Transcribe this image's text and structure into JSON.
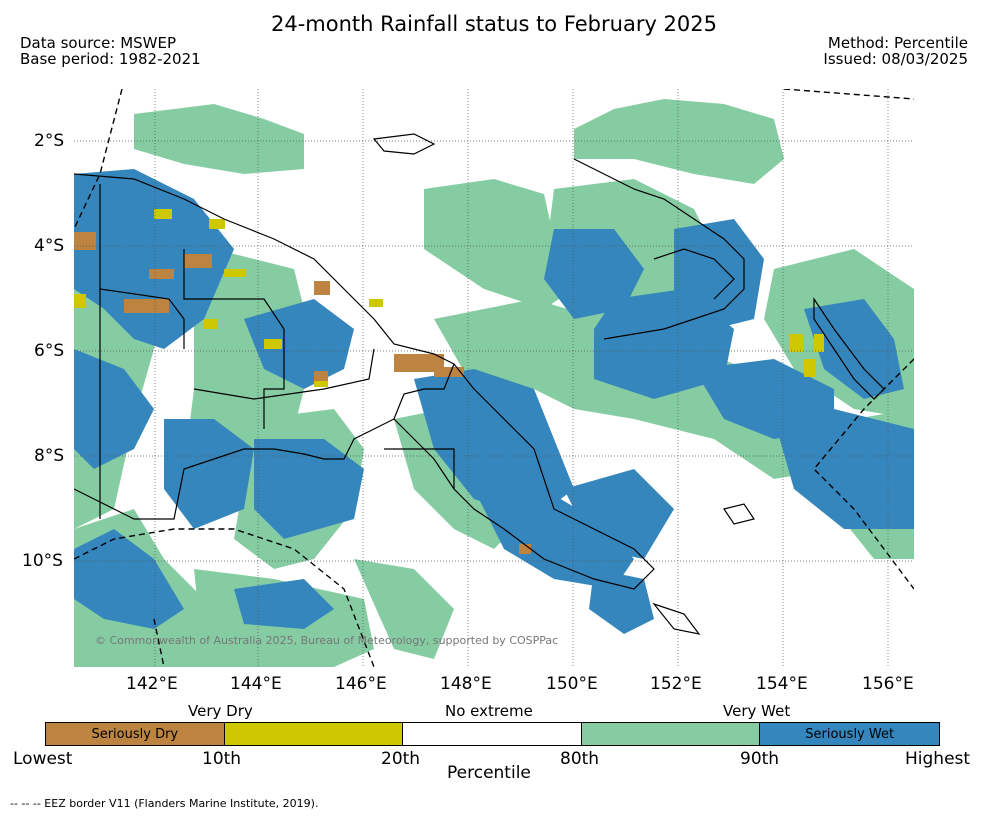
{
  "title": "24-month Rainfall status to February 2025",
  "meta_left": {
    "source": "Data source: MSWEP",
    "base": "Base period: 1982-2021"
  },
  "meta_right": {
    "method": "Method: Percentile",
    "issued": "Issued: 08/03/2025"
  },
  "copyright": "© Commonwealth of Australia 2025, Bureau of Meteorology, supported by COSPPac",
  "lat_labels": [
    "2°S",
    "4°S",
    "6°S",
    "8°S",
    "10°S"
  ],
  "lon_labels": [
    "142°E",
    "144°E",
    "146°E",
    "148°E",
    "150°E",
    "152°E",
    "154°E",
    "156°E"
  ],
  "legend": {
    "groups": {
      "very_dry": "Very Dry",
      "no_extreme": "No extreme",
      "very_wet": "Very Wet"
    },
    "segments": [
      {
        "label": "Seriously Dry",
        "color": "#bd8340"
      },
      {
        "label": "",
        "color": "#cec800"
      },
      {
        "label": "",
        "color": "#ffffff"
      },
      {
        "label": "",
        "color": "#86cca3"
      },
      {
        "label": "Seriously Wet",
        "color": "#3586bc"
      }
    ],
    "ticks": [
      "Lowest",
      "10th",
      "20th",
      "80th",
      "90th",
      "Highest"
    ],
    "axis_label": "Percentile"
  },
  "footnote": "--  --  -- EEZ border V11 (Flanders Marine Institute, 2019).",
  "colors": {
    "wet": "#86cca3",
    "seriously_wet": "#3586bc",
    "dry": "#cec800",
    "seriously_dry": "#bd8340"
  }
}
